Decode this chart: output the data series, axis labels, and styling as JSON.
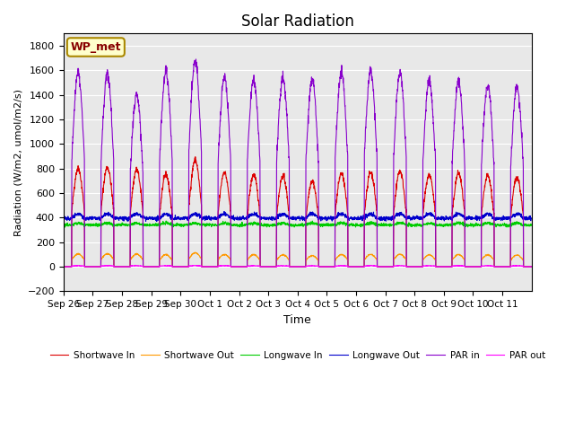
{
  "title": "Solar Radiation",
  "ylabel": "Radiation (W/m2, umol/m2/s)",
  "xlabel": "Time",
  "ylim": [
    -200,
    1900
  ],
  "yticks": [
    -200,
    0,
    200,
    400,
    600,
    800,
    1000,
    1200,
    1400,
    1600,
    1800
  ],
  "bg_color": "#e8e8e8",
  "fig_color": "#ffffff",
  "label_box_text": "WP_met",
  "label_box_facecolor": "#ffffcc",
  "label_box_edgecolor": "#aa8800",
  "series_colors": {
    "shortwave_in": "#dd0000",
    "shortwave_out": "#ff9900",
    "longwave_in": "#00cc00",
    "longwave_out": "#0000cc",
    "par_in": "#8800cc",
    "par_out": "#ff00ff"
  },
  "legend_labels": [
    "Shortwave In",
    "Shortwave Out",
    "Longwave In",
    "Longwave Out",
    "PAR in",
    "PAR out"
  ],
  "tick_labels": [
    "Sep 26",
    "Sep 27",
    "Sep 28",
    "Sep 29",
    "Sep 30",
    "Oct 1",
    "Oct 2",
    "Oct 3",
    "Oct 4",
    "Oct 5",
    "Oct 6",
    "Oct 7",
    "Oct 8",
    "Oct 9",
    "Oct 10",
    "Oct 11"
  ],
  "n_days": 16
}
